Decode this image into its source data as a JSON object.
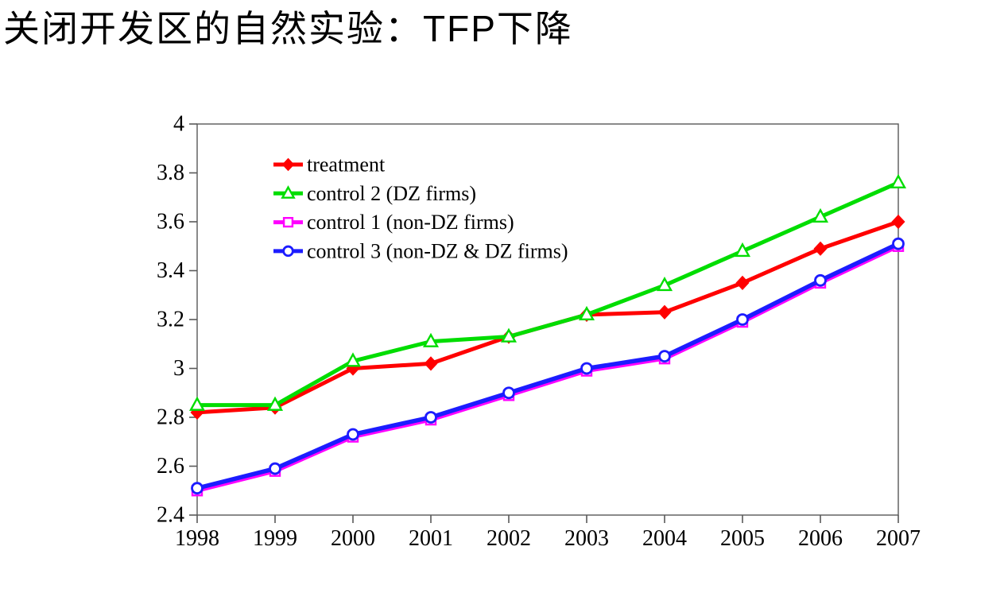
{
  "title": "关闭开发区的自然实验：TFP下降",
  "chart_data": {
    "type": "line",
    "title": "",
    "xlabel": "",
    "ylabel": "",
    "x": [
      1998,
      1999,
      2000,
      2001,
      2002,
      2003,
      2004,
      2005,
      2006,
      2007
    ],
    "x_tick_labels": [
      "1998",
      "1999",
      "2000",
      "2001",
      "2002",
      "2003",
      "2004",
      "2005",
      "2006",
      "2007"
    ],
    "ylim": [
      2.4,
      4.0
    ],
    "ytick_step": 0.2,
    "y_tick_labels": [
      "2.4",
      "2.6",
      "2.8",
      "3",
      "3.2",
      "3.4",
      "3.6",
      "3.8",
      "4"
    ],
    "grid": false,
    "legend_position": "top-left-inside",
    "axis_color": "#595959",
    "text_color": "#000000",
    "series": [
      {
        "name": "treatment",
        "color": "#FF0000",
        "marker": "diamond-icon",
        "marker_fill": "#FF0000",
        "line_width": 5,
        "values": [
          2.82,
          2.84,
          3.0,
          3.02,
          3.13,
          3.22,
          3.23,
          3.35,
          3.49,
          3.6
        ]
      },
      {
        "name": "control 2 (DZ firms)",
        "color": "#00DD00",
        "marker": "triangle-icon",
        "marker_fill": "#FFFFFF",
        "line_width": 5,
        "values": [
          2.85,
          2.85,
          3.03,
          3.11,
          3.13,
          3.22,
          3.34,
          3.48,
          3.62,
          3.76
        ]
      },
      {
        "name": "control 1 (non-DZ firms)",
        "color": "#FF00FF",
        "marker": "square-icon",
        "marker_fill": "#FFFFFF",
        "line_width": 5,
        "values": [
          2.5,
          2.58,
          2.72,
          2.79,
          2.89,
          2.99,
          3.04,
          3.19,
          3.35,
          3.5
        ]
      },
      {
        "name": "control 3 (non-DZ & DZ firms)",
        "color": "#1C1CFF",
        "marker": "circle-icon",
        "marker_fill": "#FFFFFF",
        "line_width": 5.5,
        "values": [
          2.51,
          2.59,
          2.73,
          2.8,
          2.9,
          3.0,
          3.05,
          3.2,
          3.36,
          3.51
        ]
      }
    ]
  }
}
